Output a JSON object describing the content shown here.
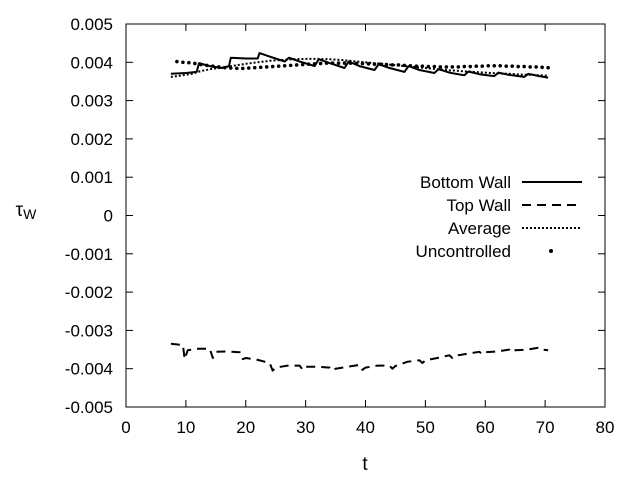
{
  "chart_data": {
    "type": "line",
    "title": "",
    "xlabel": "t",
    "ylabel": "τ",
    "ylabel_subscript": "W",
    "xlim": [
      0,
      80
    ],
    "ylim": [
      -0.005,
      0.005
    ],
    "xticks": [
      "0",
      "10",
      "20",
      "30",
      "40",
      "50",
      "60",
      "70",
      "80"
    ],
    "yticks": [
      "-0.005",
      "-0.004",
      "-0.003",
      "-0.002",
      "-0.001",
      "0",
      "0.001",
      "0.002",
      "0.003",
      "0.004",
      "0.005"
    ],
    "grid": false,
    "legend_position": "right",
    "series": [
      {
        "name": "Bottom Wall",
        "style": "solid",
        "x": [
          7.5,
          10,
          11.8,
          12.2,
          14,
          16,
          17.2,
          17.5,
          20,
          22,
          22.3,
          24,
          26.5,
          27.2,
          29,
          31.5,
          32.2,
          34,
          36.5,
          37.2,
          39,
          41.5,
          42.2,
          44,
          46.5,
          47.2,
          49,
          51.5,
          52.2,
          54,
          56.5,
          57.2,
          59,
          61.5,
          62.2,
          64,
          66.5,
          67.2,
          69,
          70.5
        ],
        "values": [
          0.0037,
          0.00372,
          0.00375,
          0.00398,
          0.0039,
          0.00385,
          0.0039,
          0.00412,
          0.0041,
          0.0041,
          0.00424,
          0.00415,
          0.00402,
          0.00412,
          0.00402,
          0.0039,
          0.00408,
          0.00398,
          0.00385,
          0.00402,
          0.0039,
          0.0038,
          0.00395,
          0.00385,
          0.00375,
          0.0039,
          0.0038,
          0.00372,
          0.00382,
          0.00373,
          0.00366,
          0.00376,
          0.00369,
          0.00364,
          0.00373,
          0.00367,
          0.00362,
          0.0037,
          0.00364,
          0.0036
        ]
      },
      {
        "name": "Top Wall",
        "style": "dashed",
        "x": [
          7.5,
          9.5,
          9.8,
          10.3,
          12,
          14,
          14.5,
          15,
          17,
          19,
          19.5,
          20,
          22,
          24,
          24.5,
          25,
          27,
          29,
          29.5,
          30,
          32,
          34,
          34.5,
          35,
          37,
          39,
          39.5,
          40,
          42,
          44,
          44.5,
          45,
          47,
          49,
          49.5,
          50,
          52,
          54,
          54.5,
          55,
          57,
          59,
          59.5,
          60,
          62,
          64,
          64.5,
          65,
          67,
          69,
          69.5,
          70.5
        ],
        "values": [
          -0.00335,
          -0.00338,
          -0.00375,
          -0.00352,
          -0.00348,
          -0.00348,
          -0.00372,
          -0.00356,
          -0.00355,
          -0.00357,
          -0.00375,
          -0.00372,
          -0.00377,
          -0.00385,
          -0.00405,
          -0.00397,
          -0.00392,
          -0.00392,
          -0.00403,
          -0.00395,
          -0.00395,
          -0.00397,
          -0.00405,
          -0.004,
          -0.00395,
          -0.0039,
          -0.00403,
          -0.00397,
          -0.00392,
          -0.00392,
          -0.004,
          -0.00393,
          -0.00382,
          -0.00378,
          -0.00385,
          -0.00378,
          -0.00372,
          -0.00365,
          -0.00372,
          -0.00366,
          -0.00361,
          -0.00356,
          -0.00362,
          -0.00357,
          -0.00355,
          -0.0035,
          -0.00357,
          -0.00352,
          -0.0035,
          -0.00345,
          -0.0035,
          -0.00352
        ]
      },
      {
        "name": "Average",
        "style": "dotted",
        "x": [
          7.5,
          9,
          11,
          12.5,
          14,
          16,
          18,
          20,
          22,
          24,
          26,
          28,
          30,
          32,
          34,
          36,
          38,
          40,
          42,
          44,
          46,
          48,
          50,
          52,
          54,
          56,
          58,
          60,
          62,
          64,
          66,
          68,
          70.5
        ],
        "values": [
          0.00362,
          0.00365,
          0.0037,
          0.00377,
          0.00382,
          0.00386,
          0.00391,
          0.00396,
          0.004,
          0.00404,
          0.00406,
          0.00408,
          0.00409,
          0.00409,
          0.00408,
          0.00406,
          0.00403,
          0.004,
          0.00397,
          0.00394,
          0.00391,
          0.00388,
          0.00385,
          0.00382,
          0.00379,
          0.00377,
          0.00375,
          0.00373,
          0.00371,
          0.0037,
          0.00368,
          0.00367,
          0.00365
        ]
      },
      {
        "name": "Uncontrolled",
        "style": "points",
        "x": [
          8.5,
          9.5,
          10.5,
          11.5,
          12.5,
          13.5,
          14.5,
          15.5,
          16.5,
          17.5,
          18.5,
          19.5,
          20.5,
          21.5,
          22.5,
          23.5,
          24.5,
          25.5,
          26.5,
          27.5,
          28.5,
          29.5,
          30.5,
          31.5,
          32.5,
          33.5,
          34.5,
          35.5,
          36.5,
          37.5,
          38.5,
          39.5,
          40.5,
          41.5,
          42.5,
          43.5,
          44.5,
          45.5,
          46.5,
          47.5,
          48.5,
          49.5,
          50.5,
          51.5,
          52.5,
          53.5,
          54.5,
          55.5,
          56.5,
          57.5,
          58.5,
          59.5,
          60.5,
          61.5,
          62.5,
          63.5,
          64.5,
          65.5,
          66.5,
          67.5,
          68.5,
          69.5,
          70.5
        ],
        "values": [
          0.00402,
          0.004,
          0.00399,
          0.00397,
          0.00394,
          0.00392,
          0.0039,
          0.00388,
          0.00386,
          0.00385,
          0.00384,
          0.00384,
          0.00385,
          0.00386,
          0.00387,
          0.00388,
          0.00389,
          0.0039,
          0.00391,
          0.00392,
          0.00393,
          0.00394,
          0.00395,
          0.00396,
          0.00397,
          0.00398,
          0.00398,
          0.00398,
          0.00398,
          0.00398,
          0.00397,
          0.00397,
          0.00396,
          0.00395,
          0.00395,
          0.00394,
          0.00393,
          0.00393,
          0.00392,
          0.00391,
          0.0039,
          0.0039,
          0.00389,
          0.00389,
          0.00388,
          0.00388,
          0.00388,
          0.00388,
          0.00389,
          0.00389,
          0.0039,
          0.0039,
          0.00391,
          0.00391,
          0.00391,
          0.0039,
          0.0039,
          0.00389,
          0.00389,
          0.00388,
          0.00388,
          0.00387,
          0.00386
        ]
      }
    ]
  }
}
